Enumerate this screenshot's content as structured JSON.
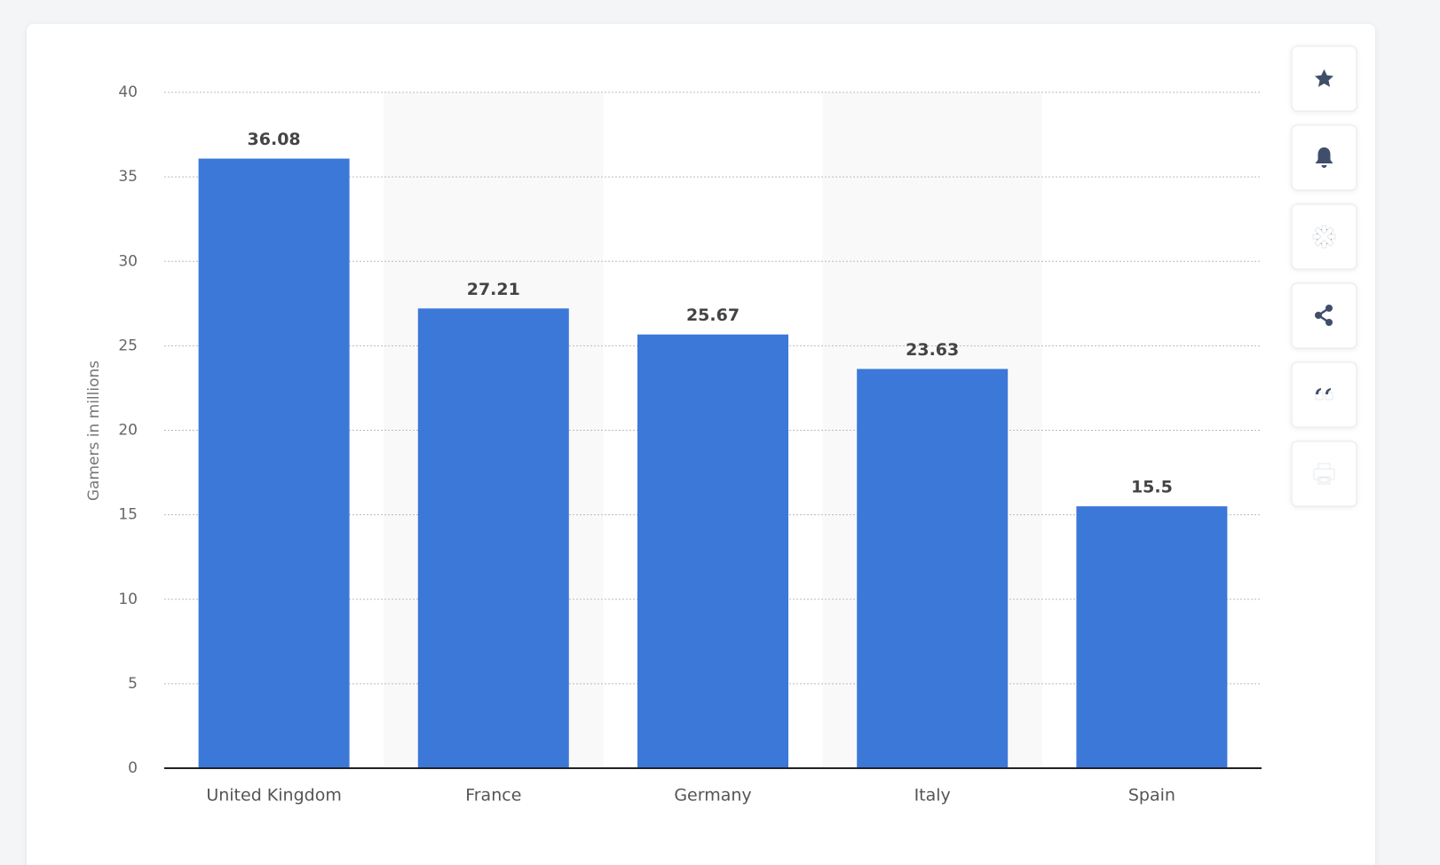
{
  "chart_data": {
    "type": "bar",
    "y_axis_label": "Gamers in millions",
    "categories": [
      "United Kingdom",
      "France",
      "Germany",
      "Italy",
      "Spain"
    ],
    "values": [
      36.08,
      27.21,
      25.67,
      23.63,
      15.5
    ],
    "color": "#3c78d8",
    "ylim": [
      0,
      40
    ],
    "yticks": [
      0,
      5,
      10,
      15,
      20,
      25,
      30,
      35,
      40
    ],
    "grid": true
  }
}
